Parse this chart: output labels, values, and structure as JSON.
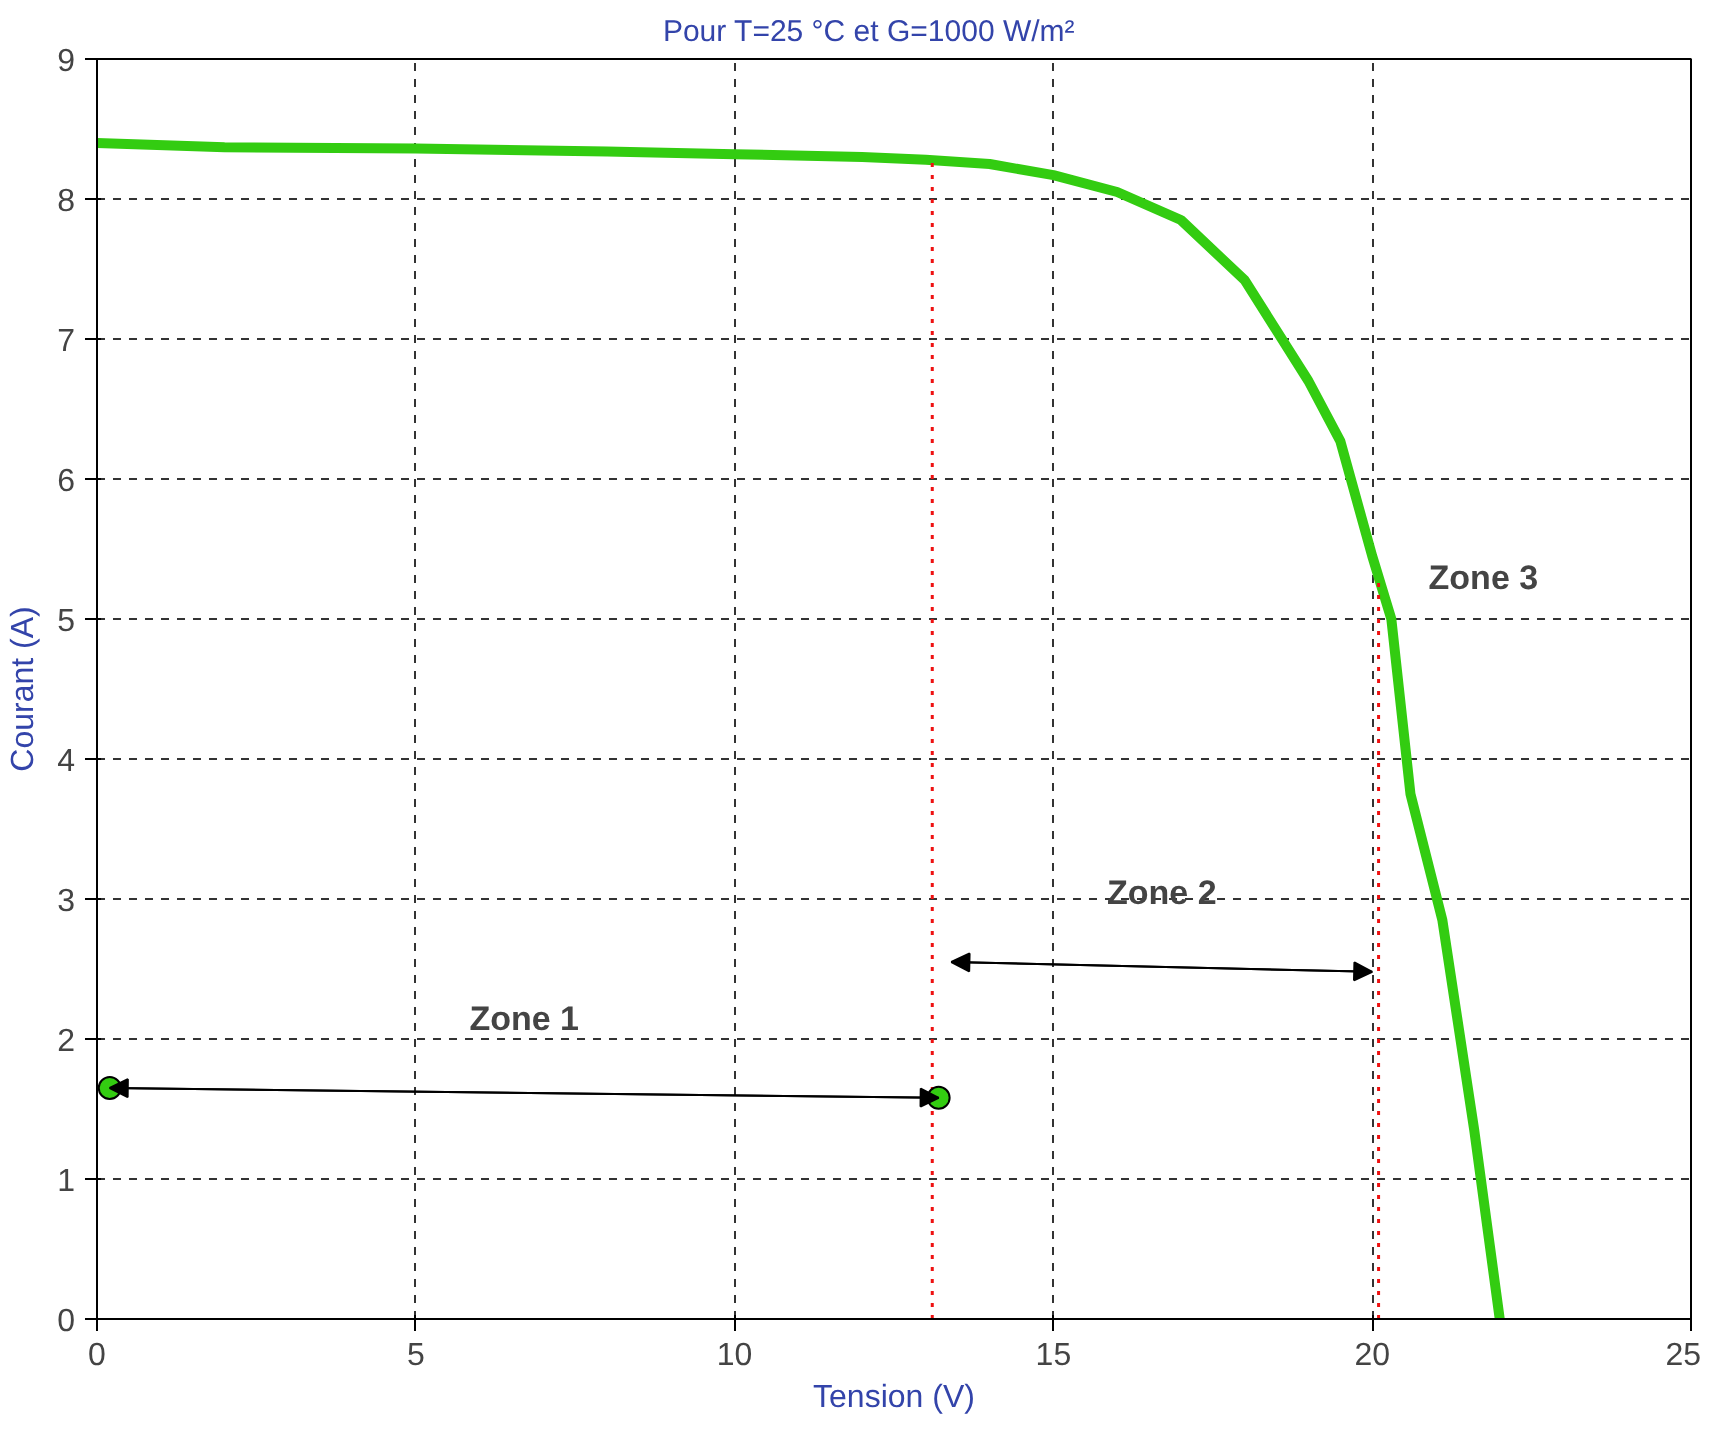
{
  "chart_data": {
    "type": "line",
    "title": "Pour T=25 °C    et    G=1000 W/m²",
    "xlabel": "Tension (V)",
    "ylabel": "Courant (A)",
    "xlim": [
      0,
      25
    ],
    "ylim": [
      0,
      9
    ],
    "xticks": [
      0,
      5,
      10,
      15,
      20,
      25
    ],
    "yticks": [
      0,
      1,
      2,
      3,
      4,
      5,
      6,
      7,
      8,
      9
    ],
    "grid": true,
    "series": [
      {
        "color": "#33cc11",
        "x": [
          0,
          2,
          5,
          8,
          10,
          12,
          13,
          14,
          15,
          16,
          17,
          18,
          19,
          19.5,
          20,
          20.3,
          20.6,
          21.1,
          21.6,
          22.0
        ],
        "values": [
          8.4,
          8.37,
          8.36,
          8.34,
          8.32,
          8.3,
          8.28,
          8.25,
          8.17,
          8.05,
          7.85,
          7.42,
          6.7,
          6.27,
          5.45,
          5.0,
          3.75,
          2.85,
          1.35,
          0
        ]
      },
      {
        "color": "#ee1111",
        "line_style": "dotted",
        "x": [
          13.1,
          13.1
        ],
        "values": [
          0,
          8.28
        ]
      },
      {
        "color": "#ee1111",
        "line_style": "dotted",
        "x": [
          20.1,
          20.1
        ],
        "values": [
          0,
          5.3
        ]
      },
      {
        "type": "scatter",
        "color": "#33cc11",
        "marker": "circle",
        "x": [
          0.2,
          13.2
        ],
        "values": [
          1.65,
          1.58
        ]
      }
    ],
    "annotations": [
      "Zone 1",
      "Zone 2",
      "Zone 3"
    ]
  }
}
